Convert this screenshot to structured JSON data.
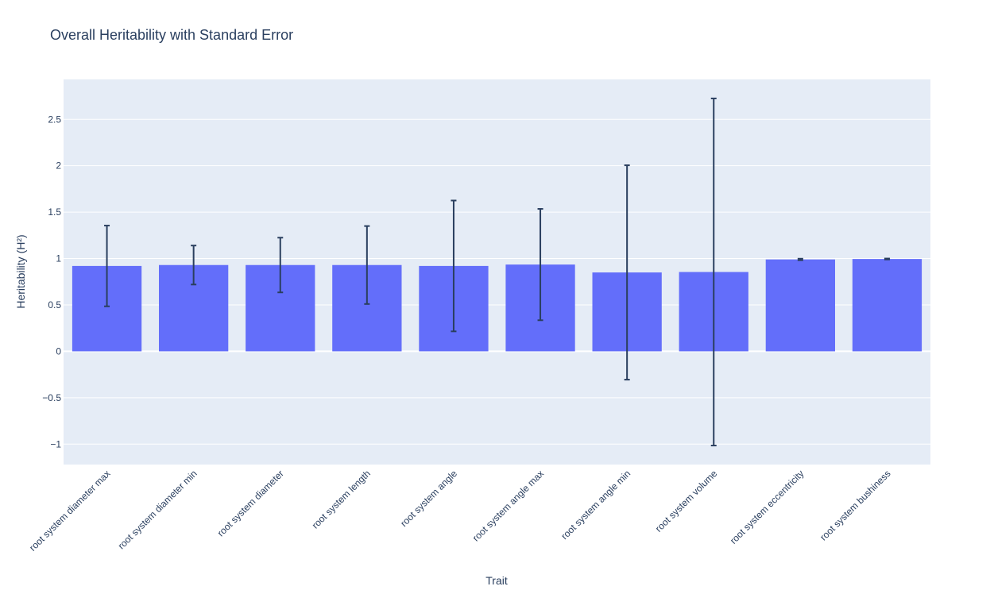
{
  "chart_data": {
    "type": "bar",
    "title": "Overall Heritability with Standard Error",
    "xlabel": "Trait",
    "ylabel": "Heritability (H²)",
    "categories": [
      "root system diameter max",
      "root system diameter min",
      "root system diameter",
      "root system length",
      "root system angle",
      "root system angle max",
      "root system angle min",
      "root system volume",
      "root system eccentricity",
      "root system bushiness"
    ],
    "values": [
      0.92,
      0.93,
      0.93,
      0.93,
      0.92,
      0.935,
      0.85,
      0.855,
      0.99,
      0.995
    ],
    "error": [
      0.435,
      0.21,
      0.295,
      0.42,
      0.705,
      0.6,
      1.155,
      1.87,
      0.008,
      0.005
    ],
    "ylim": [
      -1.22,
      2.93
    ],
    "yticks": [
      -1,
      -0.5,
      0,
      0.5,
      1,
      1.5,
      2,
      2.5
    ],
    "ytick_labels": [
      "−1",
      "−0.5",
      "0",
      "0.5",
      "1",
      "1.5",
      "2",
      "2.5"
    ],
    "grid": true,
    "colors": {
      "bar": "#636efa",
      "error_bar": "#2a3f5f",
      "plot_bg": "#e5ecf6",
      "grid": "#ffffff",
      "text": "#2a3f5f"
    }
  }
}
